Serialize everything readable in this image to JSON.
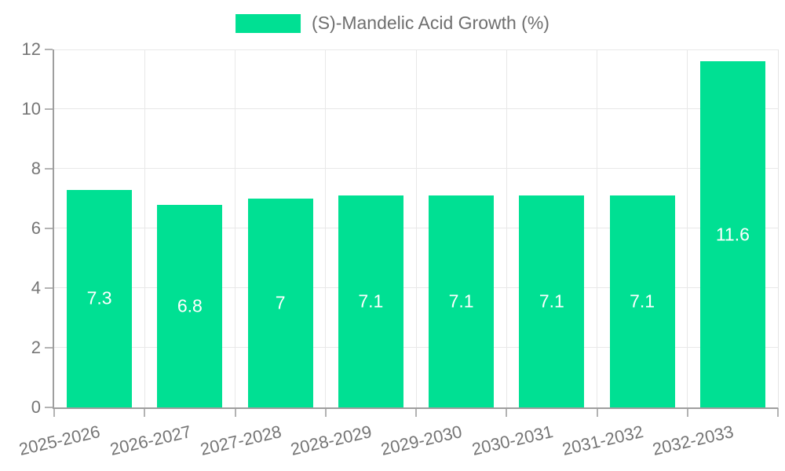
{
  "legend": {
    "label": "(S)-Mandelic Acid Growth (%)",
    "swatch_color": "#00e093"
  },
  "chart_data": {
    "type": "bar",
    "title": "(S)-Mandelic Acid Growth (%)",
    "categories": [
      "2025-2026",
      "2026-2027",
      "2027-2028",
      "2028-2029",
      "2029-2030",
      "2030-2031",
      "2031-2032",
      "2032-2033"
    ],
    "values": [
      7.3,
      6.8,
      7,
      7.1,
      7.1,
      7.1,
      7.1,
      11.6
    ],
    "value_labels": [
      "7.3",
      "6.8",
      "7",
      "7.1",
      "7.1",
      "7.1",
      "7.1",
      "11.6"
    ],
    "xlabel": "",
    "ylabel": "",
    "ylim": [
      0,
      12
    ],
    "yticks": [
      0,
      2,
      4,
      6,
      8,
      10,
      12
    ],
    "grid": true,
    "legend_position": "top-center",
    "x_label_rotation_deg": -13,
    "colors": {
      "bar": "#00e093",
      "bar_value_label": "#ffffff",
      "axis_line": "#9e9e9e",
      "gridline": "#e8e8e8",
      "tick_mark": "#b3b3b3",
      "tick_text": "#757575",
      "legend_text": "#6f6f6f",
      "background": "#ffffff"
    }
  }
}
